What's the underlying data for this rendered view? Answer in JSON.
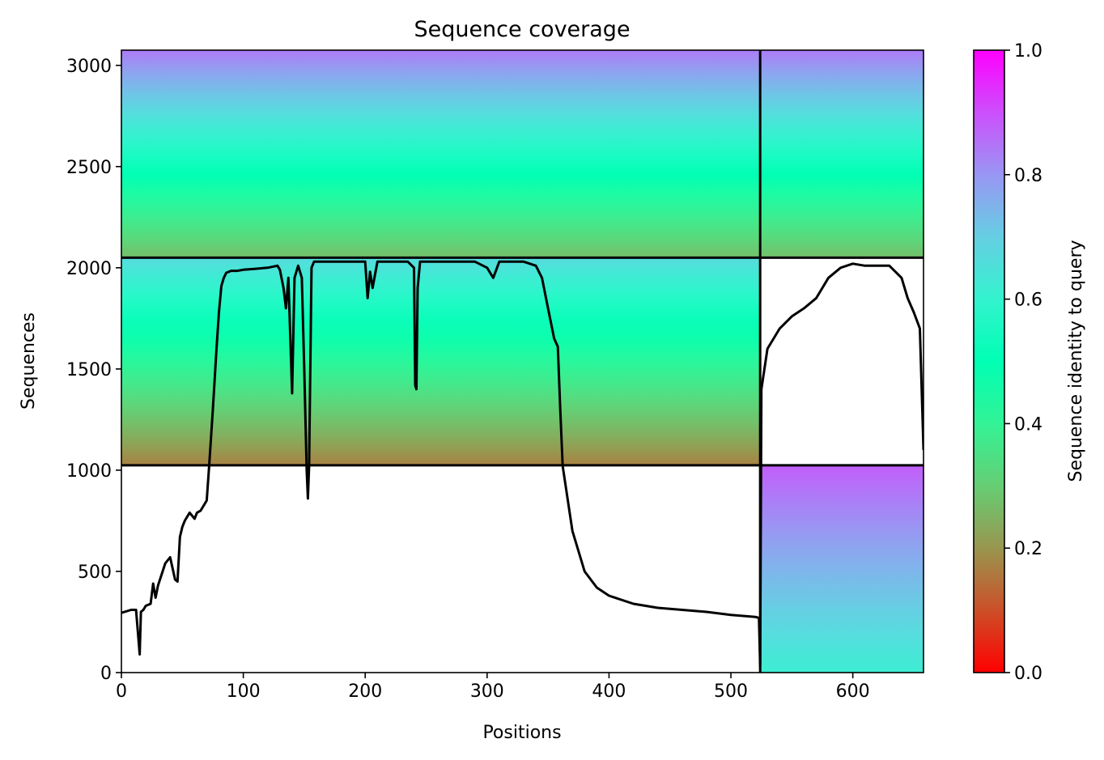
{
  "chart_data": {
    "type": "heatmap",
    "title": "Sequence coverage",
    "xlabel": "Positions",
    "ylabel": "Sequences",
    "colorbar_label": "Sequence identity to query",
    "colormap": "rainbow_r",
    "xlim": [
      0,
      658
    ],
    "ylim": [
      0,
      3075
    ],
    "clim": [
      0,
      1
    ],
    "x_ticks": [
      0,
      100,
      200,
      300,
      400,
      500,
      600
    ],
    "x_tick_labels": [
      "0",
      "100",
      "200",
      "300",
      "400",
      "500",
      "600"
    ],
    "y_ticks": [
      0,
      500,
      1000,
      1500,
      2000,
      2500,
      3000
    ],
    "y_tick_labels": [
      "0",
      "500",
      "1000",
      "1500",
      "2000",
      "2500",
      "3000"
    ],
    "colorbar_ticks": [
      0.0,
      0.2,
      0.4,
      0.6,
      0.8,
      1.0
    ],
    "colorbar_tick_labels": [
      "0.0",
      "0.2",
      "0.4",
      "0.6",
      "0.8",
      "1.0"
    ],
    "chain_boundary_x": [
      524
    ],
    "group_boundary_y": [
      1024,
      2050
    ],
    "groups": [
      {
        "y_range": [
          2050,
          3075
        ],
        "x_range": [
          0,
          524
        ],
        "identity_range": [
          0.27,
          0.84
        ]
      },
      {
        "y_range": [
          1024,
          2050
        ],
        "x_range": [
          0,
          524
        ],
        "identity_range": [
          0.17,
          0.67
        ]
      },
      {
        "y_range": [
          2050,
          3075
        ],
        "x_range": [
          524,
          658
        ],
        "identity_range": [
          0.27,
          0.84
        ]
      },
      {
        "y_range": [
          0,
          1024
        ],
        "x_range": [
          524,
          658
        ],
        "identity_range": [
          0.62,
          0.88
        ]
      }
    ],
    "coverage_line": {
      "name": "coverage",
      "x": [
        0,
        8,
        12,
        15,
        16,
        18,
        20,
        24,
        26,
        28,
        30,
        36,
        40,
        44,
        46,
        48,
        50,
        52,
        56,
        60,
        62,
        65,
        67,
        70,
        72,
        75,
        78,
        80,
        82,
        84,
        86,
        90,
        95,
        100,
        110,
        120,
        128,
        130,
        133,
        135,
        137,
        140,
        142,
        145,
        148,
        150,
        152,
        153,
        154,
        156,
        158,
        160,
        170,
        190,
        200,
        202,
        204,
        206,
        210,
        220,
        235,
        240,
        241,
        242,
        243,
        245,
        250,
        270,
        290,
        300,
        305,
        310,
        320,
        330,
        340,
        345,
        350,
        355,
        358,
        360,
        362,
        365,
        370,
        380,
        390,
        400,
        420,
        440,
        460,
        480,
        500,
        520,
        523,
        524,
        525,
        530,
        540,
        550,
        560,
        570,
        580,
        590,
        600,
        610,
        620,
        630,
        640,
        645,
        650,
        655,
        658
      ],
      "y": [
        295,
        310,
        310,
        90,
        300,
        310,
        330,
        340,
        440,
        370,
        430,
        540,
        570,
        460,
        450,
        670,
        720,
        750,
        790,
        760,
        790,
        800,
        820,
        850,
        1020,
        1300,
        1600,
        1780,
        1910,
        1950,
        1975,
        1985,
        1985,
        1990,
        1995,
        2000,
        2010,
        1990,
        1900,
        1800,
        1950,
        1380,
        1950,
        2010,
        1950,
        1500,
        1000,
        860,
        1020,
        2000,
        2030,
        2030,
        2030,
        2030,
        2030,
        1850,
        1980,
        1900,
        2030,
        2030,
        2030,
        2000,
        1420,
        1400,
        1900,
        2030,
        2030,
        2030,
        2030,
        2000,
        1950,
        2030,
        2030,
        2030,
        2010,
        1950,
        1800,
        1650,
        1610,
        1300,
        1020,
        900,
        700,
        500,
        420,
        380,
        340,
        320,
        310,
        300,
        285,
        275,
        270,
        30,
        1400,
        1600,
        1700,
        1760,
        1800,
        1850,
        1950,
        2000,
        2020,
        2010,
        2010,
        2010,
        1950,
        1850,
        1780,
        1700,
        1100
      ]
    }
  }
}
